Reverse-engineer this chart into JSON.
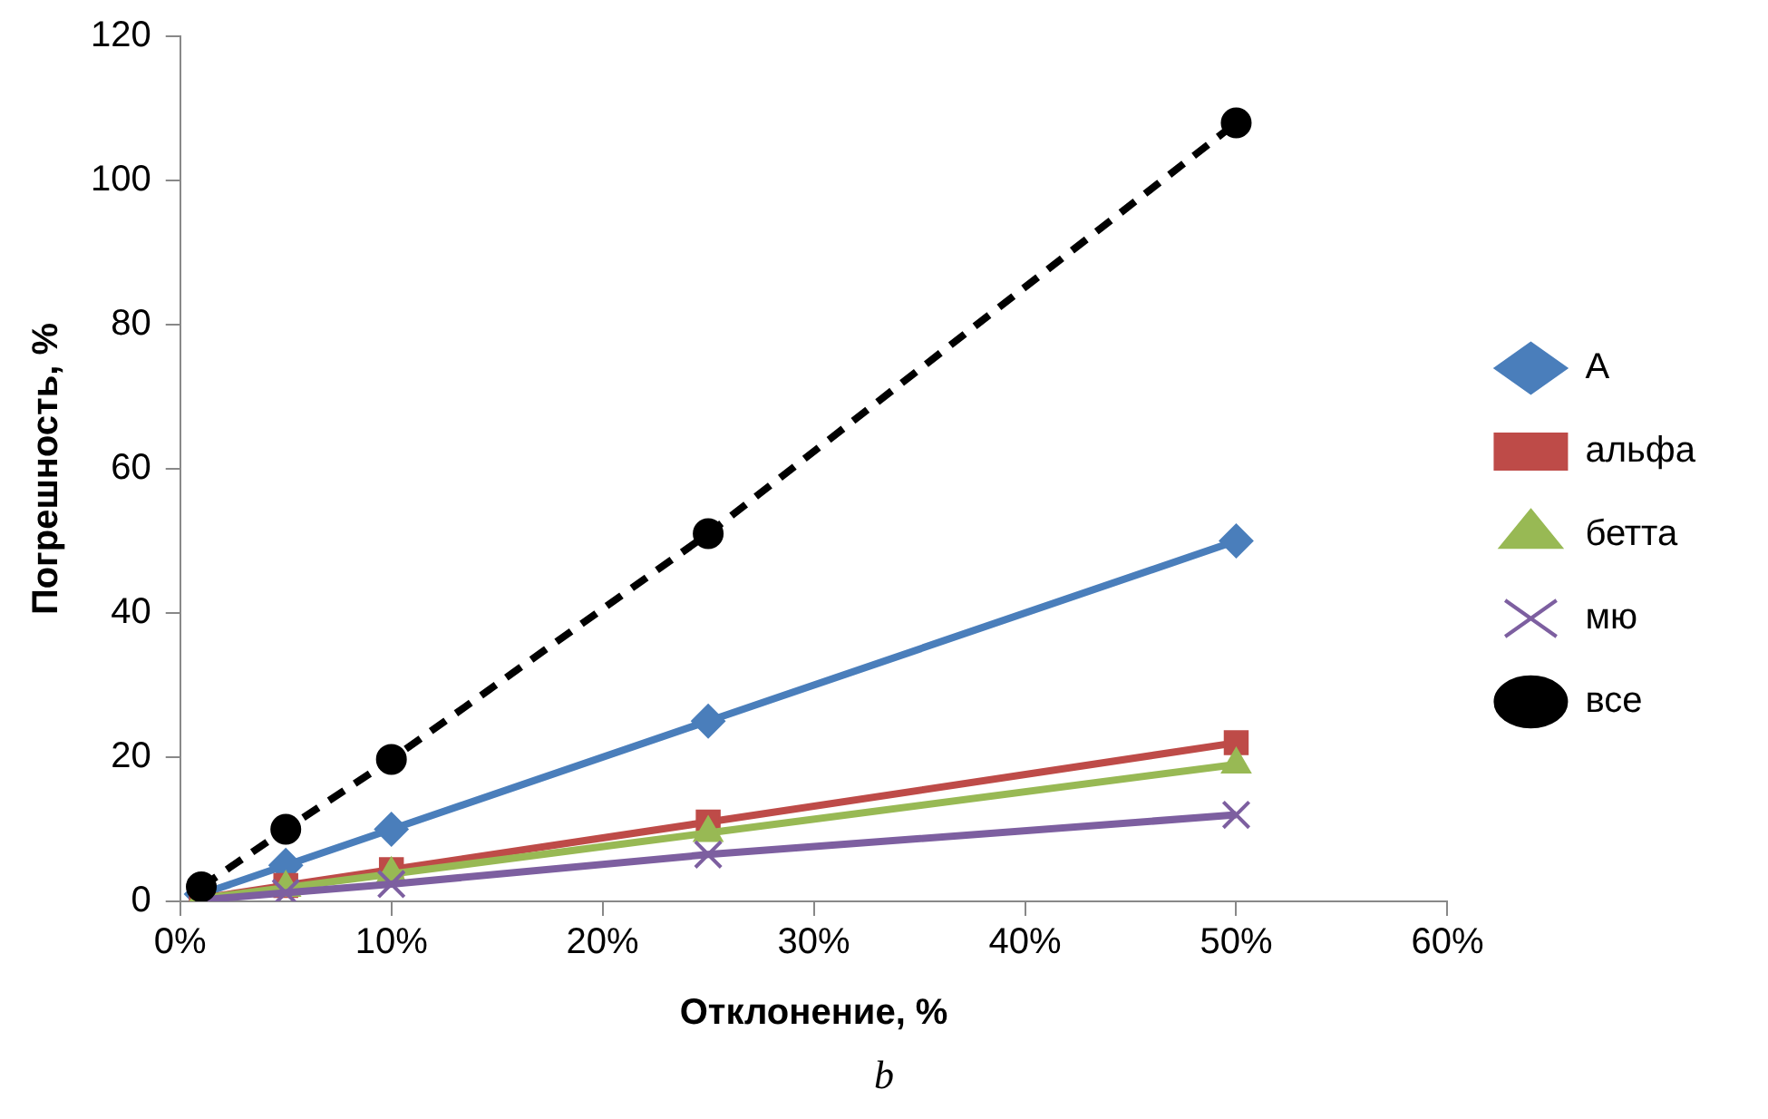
{
  "chart_data": {
    "type": "line",
    "xlabel": "Отклонение, %",
    "ylabel": "Погрешность, %",
    "x": [
      1,
      5,
      10,
      25,
      50
    ],
    "series": [
      {
        "name": "А",
        "color": "#4a7ebb",
        "marker": "diamond",
        "line_style": "solid",
        "values": [
          1,
          5,
          10,
          25,
          50
        ]
      },
      {
        "name": "альфа",
        "color": "#be4b48",
        "marker": "square",
        "line_style": "solid",
        "values": [
          0.4,
          2.2,
          4.4,
          11,
          22
        ]
      },
      {
        "name": "бетта",
        "color": "#98b954",
        "marker": "triangle",
        "line_style": "solid",
        "values": [
          0.4,
          1.9,
          3.8,
          9.5,
          19
        ]
      },
      {
        "name": "мю",
        "color": "#7d5fa0",
        "marker": "cross",
        "line_style": "solid",
        "values": [
          0.2,
          1.2,
          2.4,
          6.5,
          12
        ]
      },
      {
        "name": "все",
        "color": "#000000",
        "marker": "circle",
        "line_style": "dashed",
        "values": [
          2,
          10,
          19.7,
          51,
          108
        ]
      }
    ],
    "xlim": [
      0,
      60
    ],
    "xticks": [
      {
        "value": 0,
        "label": "0%"
      },
      {
        "value": 10,
        "label": "10%"
      },
      {
        "value": 20,
        "label": "20%"
      },
      {
        "value": 30,
        "label": "30%"
      },
      {
        "value": 40,
        "label": "40%"
      },
      {
        "value": 50,
        "label": "50%"
      },
      {
        "value": 60,
        "label": "60%"
      }
    ],
    "ylim": [
      0,
      120
    ],
    "yticks": [
      0,
      20,
      40,
      60,
      80,
      100,
      120
    ],
    "grid": false,
    "legend": "right",
    "annotations": [
      "b"
    ]
  }
}
